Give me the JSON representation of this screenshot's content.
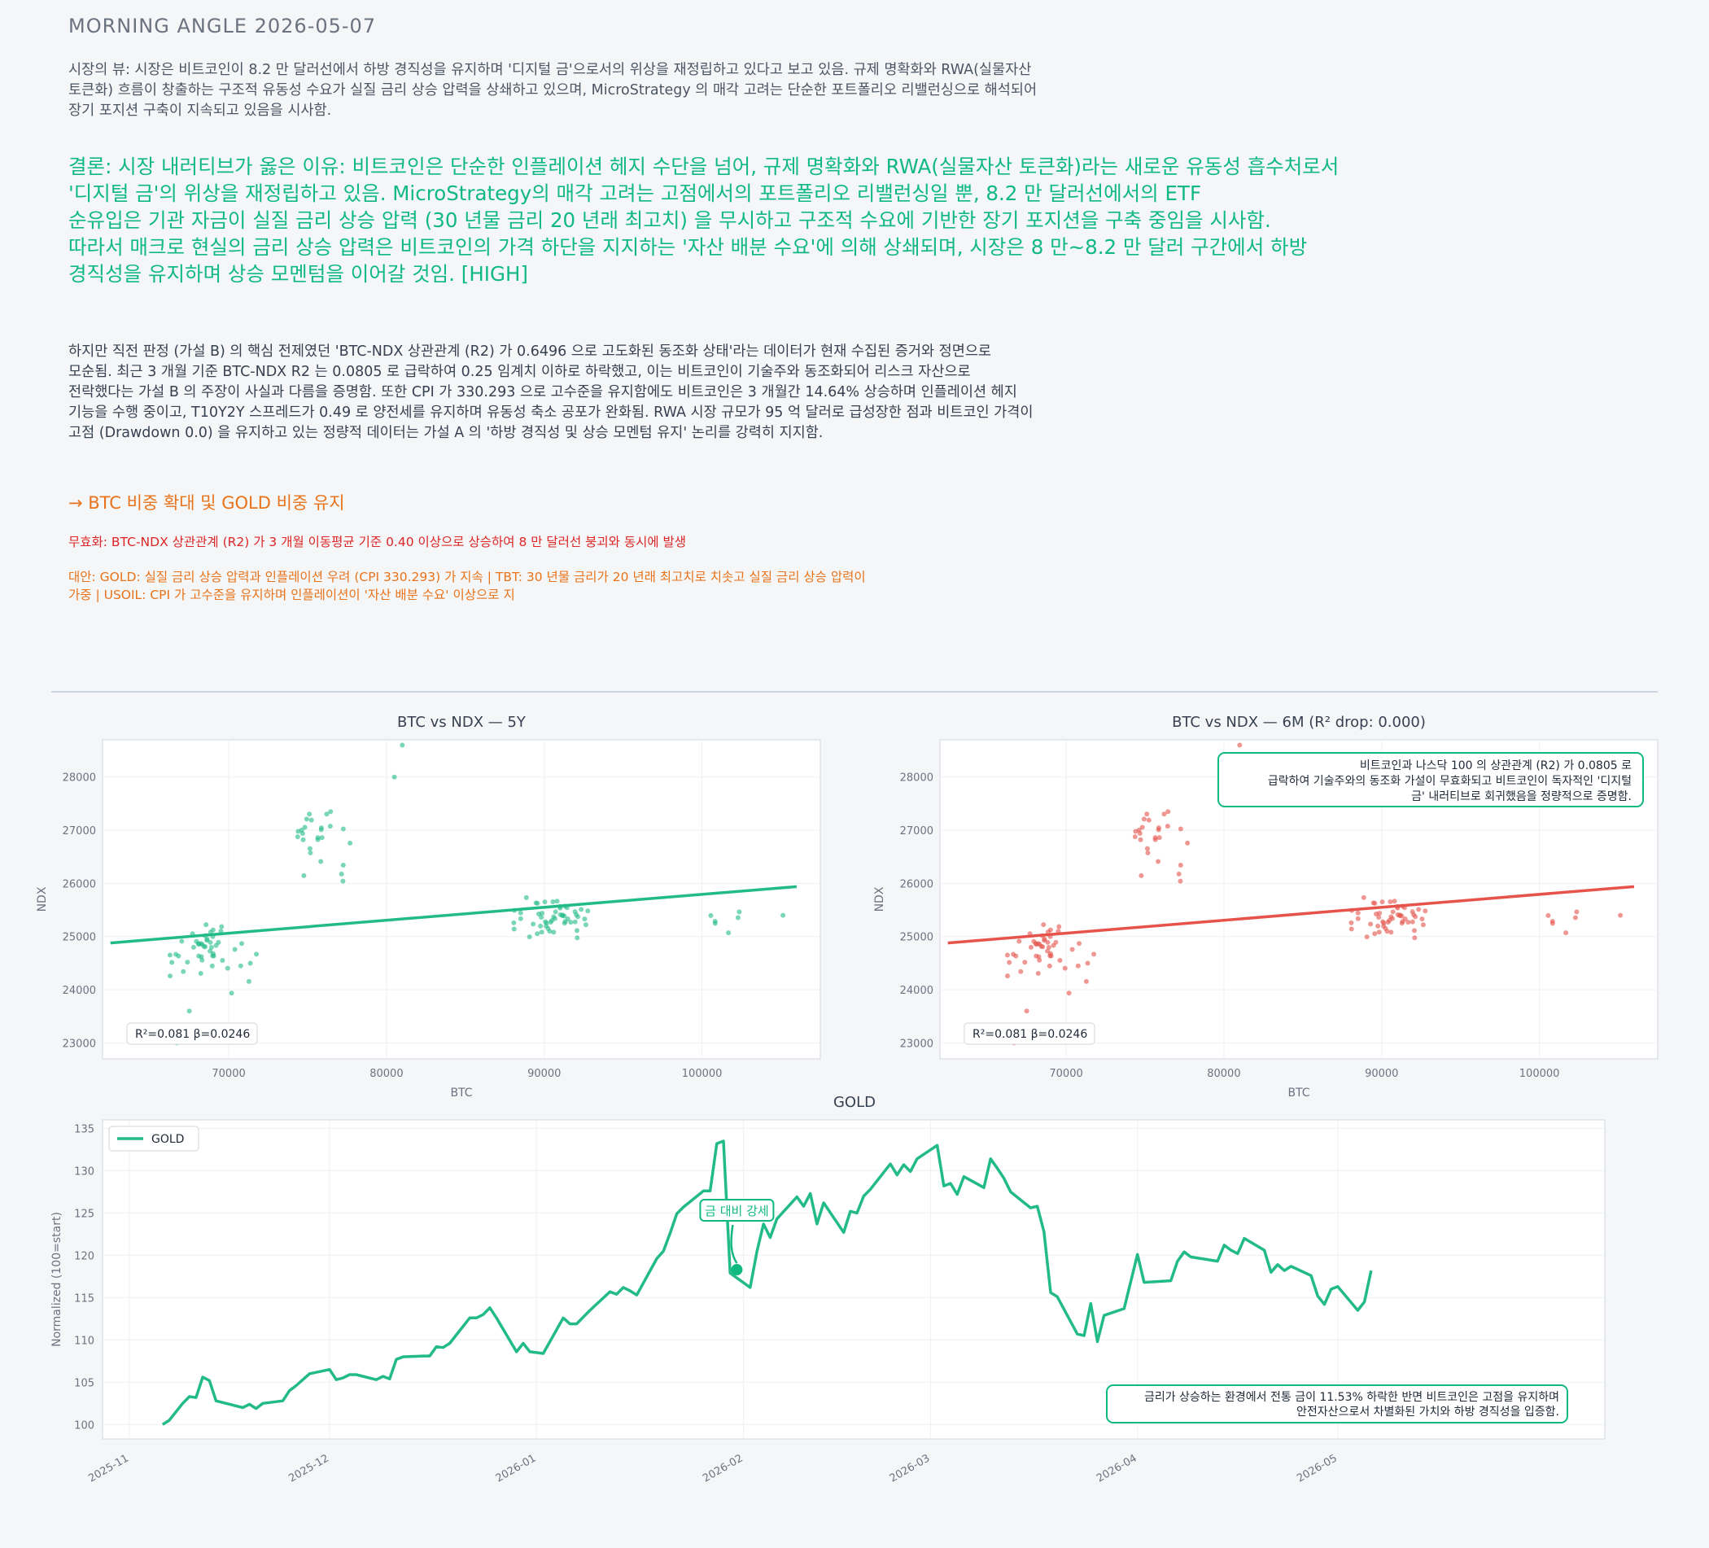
{
  "header": {
    "title": "MORNING ANGLE  2026-05-07"
  },
  "market_view": {
    "lines": [
      "시장의 뷰: 시장은 비트코인이 8.2 만 달러선에서 하방 경직성을 유지하며 '디지털 금'으로서의 위상을 재정립하고 있다고 보고 있음. 규제 명확화와 RWA(실물자산",
      "토큰화) 흐름이 창출하는 구조적 유동성 수요가 실질 금리 상승 압력을 상쇄하고 있으며, MicroStrategy 의 매각 고려는 단순한 포트폴리오 리밸런싱으로 해석되어",
      "장기 포지션 구축이 지속되고 있음을 시사함."
    ]
  },
  "conclusion": {
    "lines": [
      "결론: 시장 내러티브가 옳은 이유: 비트코인은 단순한 인플레이션 헤지 수단을 넘어, 규제 명확화와 RWA(실물자산 토큰화)라는 새로운 유동성 흡수처로서",
      "'디지털 금'의 위상을 재정립하고 있음. MicroStrategy의 매각 고려는 고점에서의 포트폴리오 리밸런싱일 뿐, 8.2 만 달러선에서의 ETF",
      "순유입은 기관 자금이 실질 금리 상승 압력 (30 년물 금리 20 년래 최고치) 을 무시하고 구조적 수요에 기반한 장기 포지션을 구축 중임을 시사함.",
      "따라서 매크로 현실의 금리 상승 압력은 비트코인의 가격 하단을 지지하는 '자산 배분 수요'에 의해 상쇄되며, 시장은 8 만~8.2 만 달러 구간에서 하방",
      "경직성을 유지하며 상승 모멘텀을 이어갈 것임.  [HIGH]"
    ]
  },
  "counter": {
    "lines": [
      "하지만 직전 판정 (가설 B) 의 핵심 전제였던 'BTC-NDX 상관관계 (R2) 가 0.6496 으로 고도화된 동조화 상태'라는 데이터가 현재 수집된 증거와 정면으로",
      "모순됨. 최근 3 개월 기준 BTC-NDX R2 는 0.0805 로 급락하여 0.25 임계치 이하로 하락했고, 이는 비트코인이 기술주와 동조화되어 리스크 자산으로",
      "전락했다는 가설 B 의 주장이 사실과 다름을 증명함. 또한 CPI 가 330.293 으로 고수준을 유지함에도 비트코인은 3 개월간 14.64% 상승하며 인플레이션 헤지",
      "기능을 수행 중이고, T10Y2Y 스프레드가 0.49 로 양전세를 유지하며 유동성 축소 공포가 완화됨. RWA 시장 규모가 95 억 달러로 급성장한 점과 비트코인 가격이",
      "고점 (Drawdown 0.0) 을 유지하고 있는 정량적 데이터는 가설 A 의 '하방 경직성 및 상승 모멘텀 유지' 논리를 강력히 지지함."
    ]
  },
  "action": {
    "text": "→ BTC 비중 확대 및 GOLD 비중 유지"
  },
  "invalidation": {
    "text": "무효화: BTC-NDX 상관관계 (R2) 가 3 개월 이동평균 기준 0.40 이상으로 상승하여 8 만 달러선 붕괴와 동시에 발생"
  },
  "alternatives": {
    "lines": [
      "대안: GOLD: 실질 금리 상승 압력과 인플레이션 우려 (CPI 330.293) 가 지속 | TBT: 30 년물 금리가 20 년래 최고치로 치솟고 실질 금리 상승 압력이",
      "가중 | USOIL: CPI 가 고수준을 유지하며 인플레이션이 '자산 배분 수요' 이상으로 지"
    ]
  },
  "colors": {
    "green": "#22bb88",
    "red": "#e5534b",
    "accent_orange": "#e8731a",
    "invalid_red": "#dc2626"
  },
  "chart_data": [
    {
      "type": "scatter",
      "title": "BTC vs NDX — 5Y",
      "xlabel": "BTC",
      "ylabel": "NDX",
      "xlim": [
        62000,
        107500
      ],
      "ylim": [
        22700,
        28700
      ],
      "xticks": [
        70000,
        80000,
        90000,
        100000
      ],
      "yticks": [
        23000,
        24000,
        25000,
        26000,
        27000,
        28000
      ],
      "stats_label": "R²=0.081  β=0.0246",
      "fit": {
        "x": [
          62500,
          106000
        ],
        "y": [
          24880,
          25940
        ]
      },
      "color": "#22bb88",
      "annotation": ""
    },
    {
      "type": "scatter",
      "title": "BTC vs NDX — 6M (R² drop: 0.000)",
      "xlabel": "BTC",
      "ylabel": "NDX",
      "xlim": [
        62000,
        107500
      ],
      "ylim": [
        22700,
        28700
      ],
      "xticks": [
        70000,
        80000,
        90000,
        100000
      ],
      "yticks": [
        23000,
        24000,
        25000,
        26000,
        27000,
        28000
      ],
      "stats_label": "R²=0.081  β=0.0246",
      "fit": {
        "x": [
          62500,
          106000
        ],
        "y": [
          24880,
          25940
        ]
      },
      "color": "#e5534b",
      "annotation_lines": [
        "비트코인과 나스닥 100 의 상관관계 (R2) 가 0.0805 로",
        "급락하여 기술주와의 동조화 가설이 무효화되고 비트코인이 독자적인 '디지털",
        "금' 내러티브로 회귀했음을 정량적으로 증명함."
      ]
    },
    {
      "type": "line",
      "title": "GOLD",
      "ylabel": "Normalized (100=start)",
      "ylim": [
        98.3,
        136
      ],
      "yticks": [
        100,
        105,
        110,
        115,
        120,
        125,
        130,
        135
      ],
      "xticks": [
        "2025-11",
        "2025-12",
        "2026-01",
        "2026-02",
        "2026-03",
        "2026-04",
        "2026-05"
      ],
      "series": [
        {
          "name": "GOLD"
        }
      ],
      "color": "#22bb88",
      "marker_label": "금 대비 강세",
      "annotation_lines": [
        "금리가 상승하는 환경에서 전통 금이 11.53% 하락한 반면 비트코인은 고점을 유지하며",
        "안전자산으로서 차별화된 가치와 하방 경직성을 입증함."
      ],
      "points": [
        [
          5,
          100
        ],
        [
          6,
          100.5
        ],
        [
          7,
          101.5
        ],
        [
          8,
          102.5
        ],
        [
          9,
          103.3
        ],
        [
          10,
          103.2
        ],
        [
          11,
          105.6
        ],
        [
          12,
          105.2
        ],
        [
          13,
          102.8
        ],
        [
          16,
          102.2
        ],
        [
          17,
          102
        ],
        [
          18,
          102.4
        ],
        [
          19,
          101.9
        ],
        [
          20,
          102.5
        ],
        [
          23,
          102.8
        ],
        [
          24,
          104
        ],
        [
          25,
          104.6
        ],
        [
          26,
          105.3
        ],
        [
          27,
          106
        ],
        [
          30,
          106.5
        ],
        [
          31,
          105.3
        ],
        [
          32,
          105.5
        ],
        [
          33,
          105.9
        ],
        [
          34,
          105.9
        ],
        [
          37,
          105.3
        ],
        [
          38,
          105.7
        ],
        [
          39,
          105.4
        ],
        [
          40,
          107.7
        ],
        [
          41,
          108
        ],
        [
          44,
          108.1
        ],
        [
          45,
          108.1
        ],
        [
          46,
          109.2
        ],
        [
          47,
          109.1
        ],
        [
          48,
          109.6
        ],
        [
          51,
          112.6
        ],
        [
          52,
          112.6
        ],
        [
          53,
          113
        ],
        [
          54,
          113.8
        ],
        [
          55,
          112.6
        ],
        [
          58,
          108.6
        ],
        [
          59,
          109.6
        ],
        [
          60,
          108.6
        ],
        [
          61,
          108.5
        ],
        [
          62,
          108.4
        ],
        [
          65,
          112.6
        ],
        [
          66,
          111.9
        ],
        [
          67,
          111.9
        ],
        [
          68,
          112.7
        ],
        [
          69,
          113.5
        ],
        [
          72,
          115.7
        ],
        [
          73,
          115.4
        ],
        [
          74,
          116.2
        ],
        [
          75,
          115.8
        ],
        [
          76,
          115.3
        ],
        [
          79,
          119.6
        ],
        [
          80,
          120.5
        ],
        [
          81,
          122.6
        ],
        [
          82,
          124.9
        ],
        [
          83,
          125.7
        ],
        [
          86,
          127.6
        ],
        [
          87,
          127.6
        ],
        [
          88,
          133.2
        ],
        [
          89,
          133.5
        ],
        [
          90,
          117.9
        ],
        [
          93,
          116.2
        ],
        [
          94,
          120.4
        ],
        [
          95,
          123.7
        ],
        [
          96,
          122.1
        ],
        [
          97,
          124.3
        ],
        [
          100,
          126.9
        ],
        [
          101,
          125.8
        ],
        [
          102,
          127.3
        ],
        [
          103,
          123.7
        ],
        [
          104,
          126.2
        ],
        [
          107,
          122.7
        ],
        [
          108,
          125.2
        ],
        [
          109,
          125
        ],
        [
          110,
          127
        ],
        [
          111,
          127.8
        ],
        [
          114,
          130.8
        ],
        [
          115,
          129.5
        ],
        [
          116,
          130.7
        ],
        [
          117,
          129.9
        ],
        [
          118,
          131.4
        ],
        [
          121,
          133
        ],
        [
          122,
          128.2
        ],
        [
          123,
          128.5
        ],
        [
          124,
          127.2
        ],
        [
          125,
          129.3
        ],
        [
          128,
          128
        ],
        [
          129,
          131.4
        ],
        [
          130,
          130.3
        ],
        [
          131,
          129.1
        ],
        [
          132,
          127.5
        ],
        [
          135,
          125.6
        ],
        [
          136,
          125.8
        ],
        [
          137,
          122.8
        ],
        [
          138,
          115.6
        ],
        [
          139,
          115.1
        ],
        [
          142,
          110.7
        ],
        [
          143,
          110.5
        ],
        [
          144,
          114.3
        ],
        [
          145,
          109.8
        ],
        [
          146,
          112.9
        ],
        [
          149,
          113.7
        ],
        [
          150,
          116.9
        ],
        [
          151,
          120.1
        ],
        [
          152,
          116.8
        ],
        [
          156,
          117
        ],
        [
          157,
          119.3
        ],
        [
          158,
          120.4
        ],
        [
          159,
          119.8
        ],
        [
          163,
          119.3
        ],
        [
          164,
          121.2
        ],
        [
          165,
          120.6
        ],
        [
          166,
          120.2
        ],
        [
          167,
          122
        ],
        [
          170,
          120.6
        ],
        [
          171,
          118
        ],
        [
          172,
          118.9
        ],
        [
          173,
          118.2
        ],
        [
          174,
          118.7
        ],
        [
          177,
          117.6
        ],
        [
          178,
          115.2
        ],
        [
          179,
          114.2
        ],
        [
          180,
          116
        ],
        [
          181,
          116.3
        ],
        [
          184,
          113.5
        ],
        [
          185,
          114.5
        ],
        [
          186,
          118.2
        ]
      ],
      "marker": [
        91,
        118.3
      ]
    }
  ]
}
